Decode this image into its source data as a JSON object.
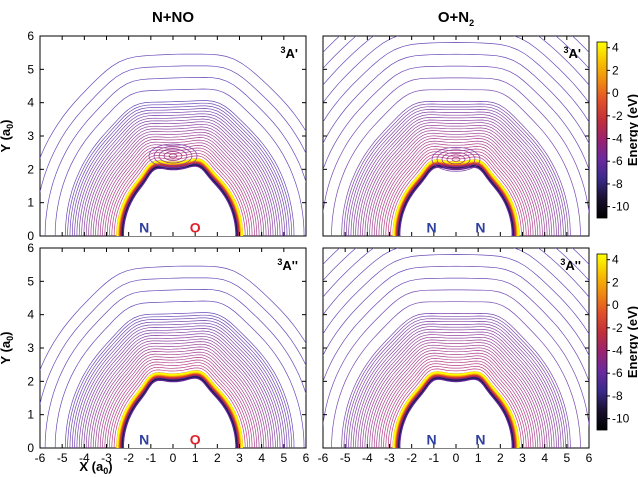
{
  "chart_data": {
    "type": "contour",
    "columns": [
      {
        "title_main": "N+NO",
        "title_sub": ""
      },
      {
        "title_main": "O+N",
        "title_sub": "2"
      }
    ],
    "panels": [
      {
        "row": 0,
        "col": 0,
        "state_sup": "3",
        "state_main": "A'",
        "atoms": [
          {
            "label": "N",
            "x": -1.3,
            "color": "#2f3f9f"
          },
          {
            "label": "O",
            "x": 1.0,
            "color": "#e0202a"
          }
        ]
      },
      {
        "row": 0,
        "col": 1,
        "state_sup": "3",
        "state_main": "A'",
        "atoms": [
          {
            "label": "N",
            "x": -1.1,
            "color": "#2f3f9f"
          },
          {
            "label": "N",
            "x": 1.1,
            "color": "#2f3f9f"
          }
        ]
      },
      {
        "row": 1,
        "col": 0,
        "state_sup": "3",
        "state_main": "A''",
        "atoms": [
          {
            "label": "N",
            "x": -1.3,
            "color": "#2f3f9f"
          },
          {
            "label": "O",
            "x": 1.0,
            "color": "#e0202a"
          }
        ]
      },
      {
        "row": 1,
        "col": 1,
        "state_sup": "3",
        "state_main": "A''",
        "atoms": [
          {
            "label": "N",
            "x": -1.1,
            "color": "#2f3f9f"
          },
          {
            "label": "N",
            "x": 1.1,
            "color": "#2f3f9f"
          }
        ]
      }
    ],
    "x_axis": {
      "label_main": "X (a",
      "label_sub": "0",
      "label_end": ")",
      "range": [
        -6,
        6
      ],
      "ticks": [
        "-6",
        "-5",
        "-4",
        "-3",
        "-2",
        "-1",
        "0",
        "1",
        "2",
        "3",
        "4",
        "5",
        "6"
      ]
    },
    "y_axis": {
      "label_main": "Y (a",
      "label_sub": "0",
      "label_end": ")",
      "range": [
        0,
        6
      ],
      "ticks": [
        "0",
        "1",
        "2",
        "3",
        "4",
        "5",
        "6"
      ]
    },
    "colorbar": {
      "label": "Energy (eV)",
      "range": [
        -11,
        4.5
      ],
      "ticks": [
        "4",
        "2",
        "0",
        "-2",
        "-4",
        "-6",
        "-8",
        "-10"
      ],
      "colors": [
        "#ffff00",
        "#f7c200",
        "#ef8a10",
        "#e2502a",
        "#c0303a",
        "#9a2270",
        "#6a2a9e",
        "#3a2a8a",
        "#1a1030",
        "#000000"
      ]
    }
  }
}
